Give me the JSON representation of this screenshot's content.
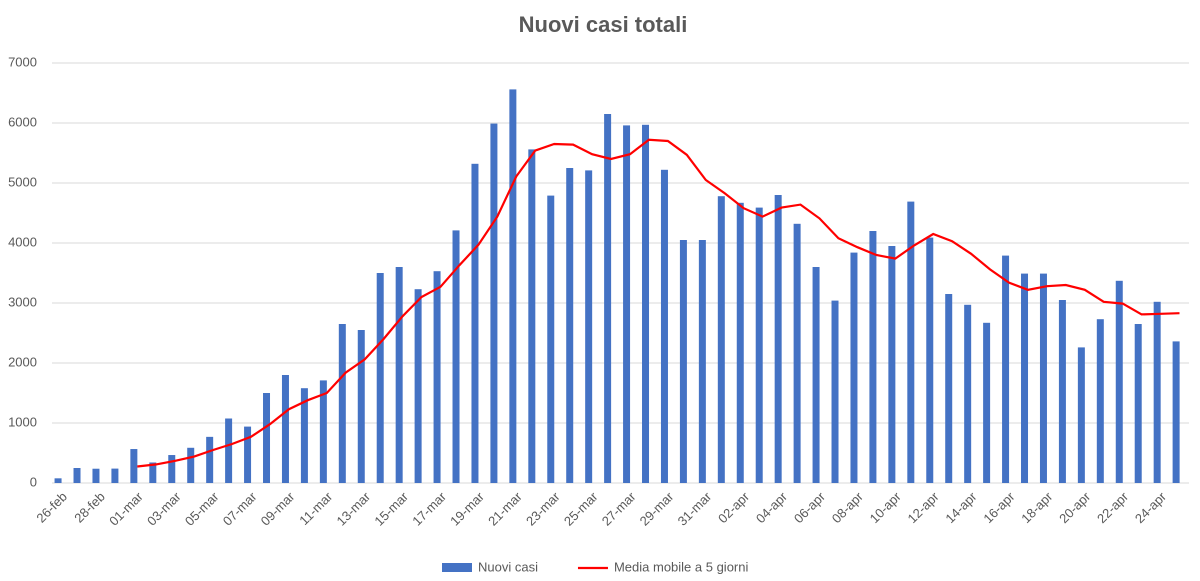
{
  "chart_data": {
    "type": "bar",
    "title": "Nuovi casi totali",
    "categories": [
      "26-feb",
      null,
      "28-feb",
      null,
      "01-mar",
      null,
      "03-mar",
      null,
      "05-mar",
      null,
      "07-mar",
      null,
      "09-mar",
      null,
      "11-mar",
      null,
      "13-mar",
      null,
      "15-mar",
      null,
      "17-mar",
      null,
      "19-mar",
      null,
      "21-mar",
      null,
      "23-mar",
      null,
      "25-mar",
      null,
      "27-mar",
      null,
      "29-mar",
      null,
      "31-mar",
      null,
      "02-apr",
      null,
      "04-apr",
      null,
      "06-apr",
      null,
      "08-apr",
      null,
      "10-apr",
      null,
      "12-apr",
      null,
      "14-apr",
      null,
      "16-apr",
      null,
      "18-apr",
      null,
      "20-apr",
      null,
      "22-apr",
      null,
      "24-apr",
      null
    ],
    "series": [
      {
        "name": "Nuovi casi",
        "type": "bar",
        "color": "#4472c4",
        "values": [
          78,
          250,
          238,
          240,
          566,
          342,
          466,
          587,
          769,
          1075,
          940,
          1500,
          1800,
          1580,
          1710,
          2650,
          2550,
          3500,
          3600,
          3230,
          3530,
          4210,
          5320,
          5990,
          6560,
          5560,
          4790,
          5250,
          5210,
          6150,
          5960,
          5970,
          5220,
          4050,
          4050,
          4780,
          4670,
          4590,
          4800,
          4320,
          3600,
          3040,
          3840,
          4200,
          3950,
          4690,
          4090,
          3150,
          2970,
          2670,
          3790,
          3490,
          3490,
          3050,
          2260,
          2730,
          3370,
          2650,
          3020,
          2360
        ]
      },
      {
        "name": "Media mobile a 5 giorni",
        "type": "line",
        "color": "#ff0000",
        "values": [
          null,
          null,
          null,
          null,
          275,
          310,
          370,
          440,
          550,
          650,
          770,
          980,
          1230,
          1380,
          1500,
          1840,
          2060,
          2400,
          2780,
          3100,
          3270,
          3630,
          3970,
          4440,
          5110,
          5540,
          5650,
          5640,
          5480,
          5400,
          5480,
          5720,
          5700,
          5470,
          5050,
          4830,
          4580,
          4440,
          4590,
          4640,
          4410,
          4080,
          3930,
          3800,
          3740,
          3960,
          4150,
          4030,
          3820,
          3560,
          3340,
          3220,
          3280,
          3300,
          3220,
          3020,
          2990,
          2810,
          2820,
          2830
        ]
      }
    ],
    "ylim": [
      0,
      7000
    ],
    "yticks": [
      0,
      1000,
      2000,
      3000,
      4000,
      5000,
      6000,
      7000
    ],
    "grid": true,
    "legend": "bottom"
  }
}
